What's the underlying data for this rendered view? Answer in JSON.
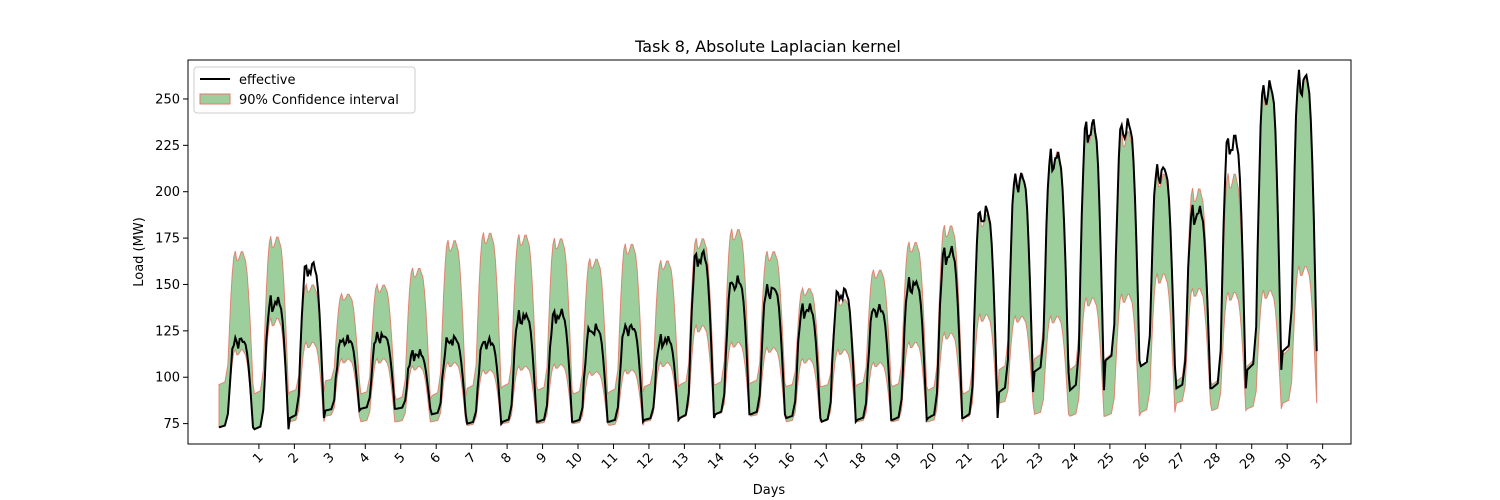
{
  "chart_data": {
    "type": "line",
    "title": "Task 8, Absolute Laplacian kernel",
    "xlabel": "Days",
    "ylabel": "Load (MW)",
    "xlim": [
      -1.0,
      31.8
    ],
    "ylim": [
      64,
      271
    ],
    "xticks": [
      1,
      2,
      3,
      4,
      5,
      6,
      7,
      8,
      9,
      10,
      11,
      12,
      13,
      14,
      15,
      16,
      17,
      18,
      19,
      20,
      21,
      22,
      23,
      24,
      25,
      26,
      27,
      28,
      29,
      30,
      31
    ],
    "xtick_labels": [
      "1",
      "2",
      "3",
      "4",
      "5",
      "6",
      "7",
      "8",
      "9",
      "10",
      "11",
      "12",
      "13",
      "14",
      "15",
      "16",
      "17",
      "18",
      "19",
      "20",
      "21",
      "22",
      "23",
      "24",
      "25",
      "26",
      "27",
      "28",
      "29",
      "30",
      "31"
    ],
    "yticks": [
      75,
      100,
      125,
      150,
      175,
      200,
      225,
      250
    ],
    "ytick_labels": [
      "75",
      "100",
      "125",
      "150",
      "175",
      "200",
      "225",
      "250"
    ],
    "legend_position": "upper-left",
    "colors": {
      "effective": "#000000",
      "ci_fill": "#4aa84a",
      "ci_edge": "#e07b6a"
    },
    "daily_profile": {
      "days": [
        0,
        1,
        2,
        3,
        4,
        5,
        6,
        7,
        8,
        9,
        10,
        11,
        12,
        13,
        14,
        15,
        16,
        17,
        18,
        19,
        20,
        21,
        22,
        23,
        24,
        25,
        26,
        27,
        28,
        29,
        30
      ],
      "effective": {
        "min": [
          73,
          72,
          78,
          82,
          83,
          83,
          80,
          75,
          76,
          76,
          76,
          76,
          77,
          78,
          80,
          80,
          78,
          76,
          77,
          77,
          78,
          78,
          92,
          103,
          93,
          109,
          106,
          94,
          94,
          104,
          114
        ],
        "max": [
          121,
          142,
          161,
          121,
          123,
          113,
          121,
          120,
          134,
          135,
          127,
          128,
          121,
          167,
          153,
          149,
          138,
          147,
          138,
          152,
          169,
          191,
          210,
          221,
          238,
          238,
          214,
          191,
          230,
          259,
          264
        ]
      },
      "lower": {
        "min": [
          73,
          72,
          76,
          79,
          76,
          76,
          76,
          74,
          75,
          75,
          75,
          74,
          76,
          78,
          80,
          79,
          76,
          76,
          76,
          76,
          76,
          78,
          86,
          80,
          79,
          79,
          81,
          86,
          82,
          83,
          86
        ],
        "max": [
          115,
          132,
          119,
          110,
          110,
          106,
          108,
          104,
          106,
          107,
          103,
          104,
          108,
          128,
          119,
          116,
          110,
          115,
          108,
          119,
          124,
          134,
          133,
          133,
          143,
          145,
          156,
          148,
          146,
          147,
          160
        ]
      },
      "upper": {
        "min": [
          96,
          91,
          92,
          98,
          91,
          88,
          90,
          94,
          95,
          93,
          91,
          92,
          95,
          96,
          96,
          97,
          95,
          95,
          96,
          95,
          93,
          91,
          104,
          110,
          104,
          110,
          106,
          98,
          96,
          106,
          112
        ],
        "max": [
          168,
          176,
          150,
          145,
          150,
          159,
          174,
          178,
          177,
          175,
          164,
          172,
          163,
          175,
          180,
          168,
          148,
          142,
          158,
          173,
          182,
          188,
          210,
          222,
          235,
          233,
          210,
          202,
          210,
          257,
          263
        ]
      }
    },
    "series": [
      {
        "name": "effective",
        "kind": "line"
      },
      {
        "name": "90% Confidence interval",
        "kind": "band"
      }
    ]
  }
}
